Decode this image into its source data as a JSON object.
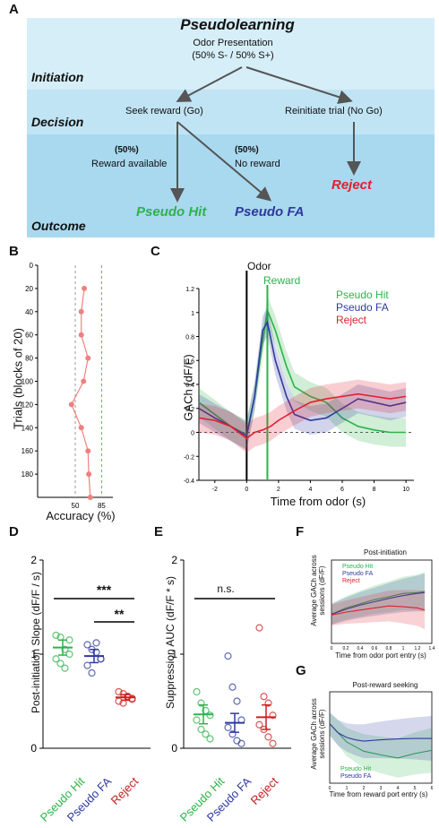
{
  "panel_labels": {
    "a": "A",
    "b": "B",
    "c": "C",
    "d": "D",
    "e": "E",
    "f": "F",
    "g": "G"
  },
  "colors": {
    "hit": "#2db34a",
    "fa": "#2e3a9e",
    "reject": "#e02030",
    "band_top": "#d6eef8",
    "band_mid": "#c1e4f4",
    "band_bot": "#a9d9ef",
    "arrow": "#555555",
    "panel_b": "#f08080"
  },
  "panel_a": {
    "title": "Pseudolearning",
    "odor_line1": "Odor Presentation",
    "odor_line2": "(50% S- / 50% S+)",
    "stage_initiation": "Initiation",
    "stage_decision": "Decision",
    "stage_outcome": "Outcome",
    "seek_reward": "Seek reward (Go)",
    "reinitiate": "Reinitiate trial (No Go)",
    "pct_left": "(50%)",
    "reward_available": "Reward available",
    "pct_right": "(50%)",
    "no_reward": "No reward",
    "outcome_hit": "Pseudo Hit",
    "outcome_fa": "Pseudo FA",
    "outcome_reject": "Reject"
  },
  "chart_data": [
    {
      "panel": "B",
      "type": "line",
      "ylabel": "Trials (blocks of 20)",
      "xlabel": "Accuracy (%)",
      "x_ticks": [
        "50",
        "85"
      ],
      "y_ticks": [
        "0",
        "20",
        "40",
        "60",
        "80",
        "100",
        "120",
        "140",
        "160",
        "180"
      ],
      "ylim": [
        0,
        200
      ],
      "points_trials": [
        20,
        40,
        60,
        80,
        100,
        120,
        140,
        160,
        180,
        200
      ],
      "points_accuracy": [
        62,
        58,
        58,
        67,
        61,
        45,
        58,
        67,
        68,
        70
      ],
      "reference_lines": [
        50,
        85
      ]
    },
    {
      "panel": "C",
      "type": "line",
      "ylabel": "GACh  (dF/F)",
      "xlabel": "Time from odor (s)",
      "event_odor": "Odor",
      "event_reward": "Reward",
      "x_ticks": [
        "-2",
        "0",
        "2",
        "4",
        "6",
        "8",
        "10"
      ],
      "y_ticks": [
        "1.2",
        "1",
        "0.8",
        "0.6",
        "0.4",
        "0.2",
        "0",
        "-0.2",
        "-0.4"
      ],
      "xlim": [
        -3,
        10.5
      ],
      "ylim": [
        -0.4,
        1.2
      ],
      "series": [
        {
          "name": "Pseudo Hit",
          "x": [
            -3,
            -2,
            -1,
            0,
            0.5,
            1,
            1.3,
            1.8,
            2.5,
            3,
            4,
            5,
            6,
            7,
            8,
            9,
            10
          ],
          "y": [
            0.25,
            0.15,
            0.05,
            -0.02,
            0.3,
            0.75,
            1.02,
            0.85,
            0.55,
            0.38,
            0.3,
            0.25,
            0.12,
            0.05,
            0.02,
            0.0,
            0.0
          ]
        },
        {
          "name": "Pseudo FA",
          "x": [
            -3,
            -2,
            -1,
            0,
            0.5,
            1,
            1.3,
            1.8,
            2.5,
            3,
            4,
            5,
            6,
            7,
            8,
            9,
            10
          ],
          "y": [
            0.2,
            0.12,
            0.05,
            -0.03,
            0.3,
            0.85,
            0.92,
            0.6,
            0.3,
            0.15,
            0.1,
            0.12,
            0.2,
            0.28,
            0.25,
            0.22,
            0.25
          ]
        },
        {
          "name": "Reject",
          "x": [
            -3,
            -2,
            -1,
            0,
            0.5,
            1,
            1.5,
            2,
            3,
            4,
            5,
            6,
            7,
            8,
            9,
            10
          ],
          "y": [
            0.12,
            0.1,
            0.05,
            -0.05,
            0.0,
            0.02,
            0.05,
            0.1,
            0.18,
            0.25,
            0.28,
            0.3,
            0.32,
            0.3,
            0.28,
            0.3
          ]
        }
      ]
    },
    {
      "panel": "D",
      "type": "scatter",
      "ylabel": "Post-initiation Slope (dF/F / s)",
      "categories": [
        "Pseudo Hit",
        "Pseudo FA",
        "Reject"
      ],
      "y_ticks": [
        "0",
        "1",
        "2"
      ],
      "ylim": [
        0,
        2
      ],
      "means": [
        1.07,
        0.98,
        0.54
      ],
      "sem": [
        0.08,
        0.07,
        0.03
      ],
      "points": [
        [
          1.2,
          1.18,
          1.05,
          1.0,
          0.95,
          0.9,
          0.85,
          1.15
        ],
        [
          1.1,
          1.05,
          1.02,
          0.95,
          0.88,
          0.8,
          1.12,
          0.95
        ],
        [
          0.6,
          0.58,
          0.55,
          0.53,
          0.5,
          0.48,
          0.55,
          0.52
        ]
      ],
      "sig_top": "***",
      "sig_inner": "**"
    },
    {
      "panel": "E",
      "type": "scatter",
      "ylabel": "Suppression AUC (dF/F * s)",
      "categories": [
        "Pseudo Hit",
        "Pseudo FA",
        "Reject"
      ],
      "y_ticks": [
        "0",
        "1",
        "2"
      ],
      "ylim": [
        0,
        2
      ],
      "means": [
        0.36,
        0.27,
        0.33
      ],
      "sem": [
        0.1,
        0.1,
        0.13
      ],
      "points": [
        [
          0.6,
          0.48,
          0.4,
          0.35,
          0.3,
          0.2,
          0.15,
          0.1
        ],
        [
          0.98,
          0.65,
          0.5,
          0.3,
          0.22,
          0.15,
          0.08,
          0.05
        ],
        [
          1.28,
          0.55,
          0.48,
          0.35,
          0.25,
          0.2,
          0.12,
          0.05
        ]
      ],
      "sig_top": "n.s."
    },
    {
      "panel": "F",
      "type": "line",
      "title": "Post-initiation",
      "ylabel": "Average GACh across sessions (dF/F)",
      "xlabel": "Time from odor port entry (s)",
      "x_ticks": [
        "0",
        "0.2",
        "0.4",
        "0.6",
        "0.8",
        "1",
        "1.2",
        "1.4"
      ],
      "xlim": [
        0,
        1.4
      ],
      "ylim": [
        -1,
        1
      ],
      "series": [
        {
          "name": "Pseudo Hit",
          "x": [
            0,
            0.2,
            0.4,
            0.6,
            0.8,
            1.0,
            1.2,
            1.3
          ],
          "y": [
            -0.3,
            -0.15,
            -0.05,
            0.05,
            0.12,
            0.2,
            0.22,
            0.25
          ]
        },
        {
          "name": "Pseudo FA",
          "x": [
            0,
            0.2,
            0.4,
            0.6,
            0.8,
            1.0,
            1.2,
            1.3
          ],
          "y": [
            -0.3,
            -0.18,
            -0.08,
            0.0,
            0.08,
            0.15,
            0.2,
            0.22
          ]
        },
        {
          "name": "Reject",
          "x": [
            0,
            0.2,
            0.4,
            0.6,
            0.8,
            1.0,
            1.2,
            1.3
          ],
          "y": [
            -0.32,
            -0.25,
            -0.2,
            -0.15,
            -0.1,
            -0.12,
            -0.15,
            -0.2
          ]
        }
      ]
    },
    {
      "panel": "G",
      "type": "line",
      "title": "Post-reward seeking",
      "ylabel": "Average GACh across sessions (dF/F)",
      "xlabel": "Time from reward port entry (s)",
      "x_ticks": [
        "0",
        "1",
        "2",
        "3",
        "4",
        "5",
        "6"
      ],
      "xlim": [
        0,
        6
      ],
      "ylim": [
        -1,
        1
      ],
      "series": [
        {
          "name": "Pseudo Hit",
          "x": [
            0,
            0.5,
            1,
            1.5,
            2,
            3,
            4,
            5,
            6
          ],
          "y": [
            0.3,
            0.1,
            -0.1,
            -0.2,
            -0.3,
            -0.38,
            -0.45,
            -0.35,
            -0.28
          ]
        },
        {
          "name": "Pseudo FA",
          "x": [
            0,
            0.5,
            1,
            1.5,
            2,
            3,
            4,
            5,
            6
          ],
          "y": [
            0.3,
            0.1,
            0.0,
            -0.05,
            -0.08,
            -0.05,
            -0.03,
            -0.02,
            -0.02
          ]
        }
      ]
    }
  ]
}
